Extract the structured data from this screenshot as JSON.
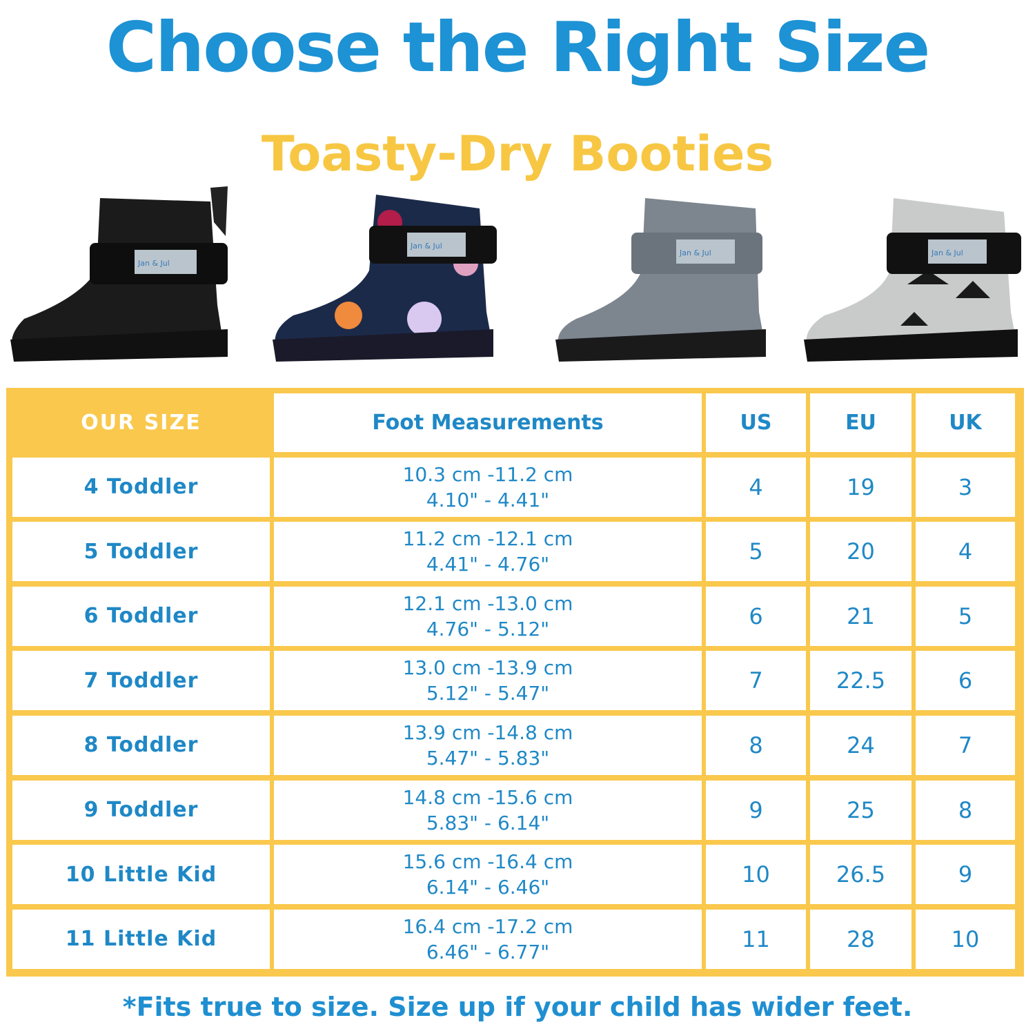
{
  "title": "Choose the Right Size",
  "subtitle": "Toasty-Dry Booties",
  "boots": [
    {
      "color": "black",
      "label": "Jan & Jul"
    },
    {
      "color": "navy floral",
      "label": "Jan & Jul"
    },
    {
      "color": "grey",
      "label": "Jan & Jul"
    },
    {
      "color": "grey bear print",
      "label": "Jan & Jul"
    }
  ],
  "colors": {
    "blue": "#1d92d4",
    "yellow": "#f9c84d"
  },
  "table": {
    "headers": [
      "OUR SIZE",
      "Foot Measurements",
      "US",
      "EU",
      "UK"
    ],
    "rows": [
      {
        "size": "4 Toddler",
        "cm": "10.3 cm -11.2 cm",
        "in": "4.10\" - 4.41\"",
        "us": "4",
        "eu": "19",
        "uk": "3"
      },
      {
        "size": "5 Toddler",
        "cm": "11.2 cm -12.1 cm",
        "in": "4.41\" - 4.76\"",
        "us": "5",
        "eu": "20",
        "uk": "4"
      },
      {
        "size": "6 Toddler",
        "cm": "12.1 cm -13.0 cm",
        "in": "4.76\" - 5.12\"",
        "us": "6",
        "eu": "21",
        "uk": "5"
      },
      {
        "size": "7 Toddler",
        "cm": "13.0 cm -13.9 cm",
        "in": "5.12\" - 5.47\"",
        "us": "7",
        "eu": "22.5",
        "uk": "6"
      },
      {
        "size": "8 Toddler",
        "cm": "13.9 cm -14.8 cm",
        "in": "5.47\" - 5.83\"",
        "us": "8",
        "eu": "24",
        "uk": "7"
      },
      {
        "size": "9 Toddler",
        "cm": "14.8 cm -15.6 cm",
        "in": "5.83\" - 6.14\"",
        "us": "9",
        "eu": "25",
        "uk": "8"
      },
      {
        "size": "10 Little Kid",
        "cm": "15.6 cm -16.4 cm",
        "in": "6.14\" - 6.46\"",
        "us": "10",
        "eu": "26.5",
        "uk": "9"
      },
      {
        "size": "11 Little Kid",
        "cm": "16.4 cm -17.2 cm",
        "in": "6.46\" - 6.77\"",
        "us": "11",
        "eu": "28",
        "uk": "10"
      }
    ]
  },
  "note": "*Fits true to size. Size up if your child has wider feet."
}
